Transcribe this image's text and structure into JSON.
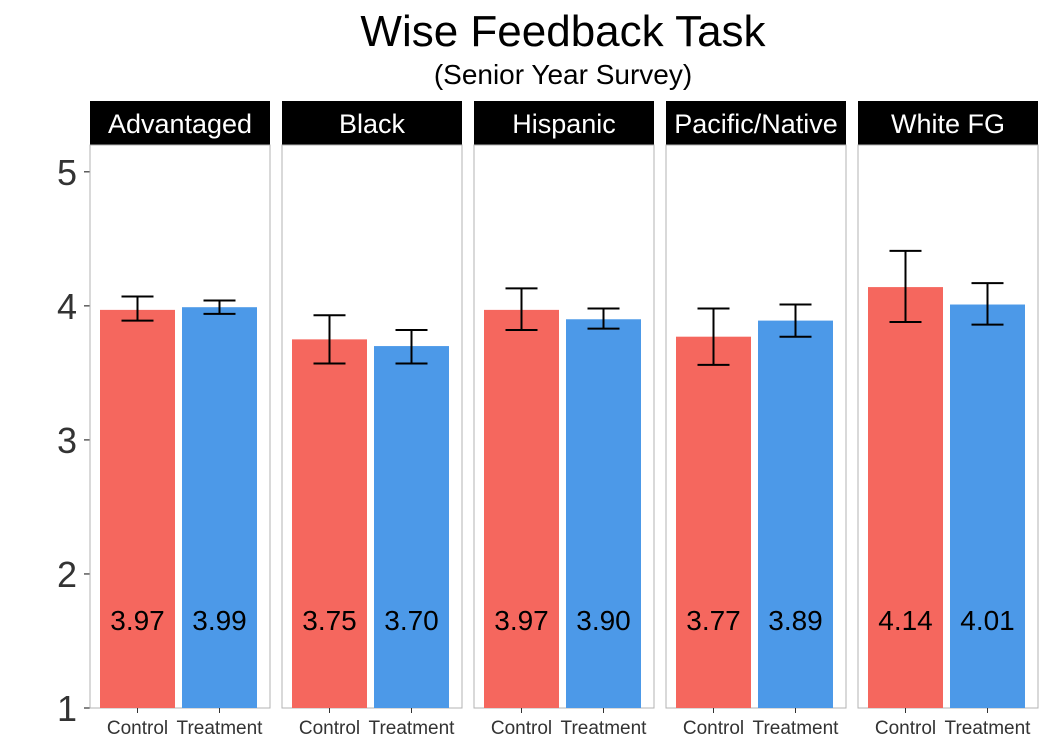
{
  "chart_data": {
    "type": "bar",
    "title": "Wise Feedback Task",
    "subtitle": "(Senior Year Survey)",
    "xlabel": "",
    "ylabel": "",
    "ylim": [
      1,
      5.2
    ],
    "yticks": [
      "1",
      "2",
      "3",
      "4",
      "5"
    ],
    "grid": false,
    "legend": "none",
    "categories": [
      "Control",
      "Treatment"
    ],
    "colors": {
      "Control": "#F5675E",
      "Treatment": "#4C99E8"
    },
    "facets": [
      {
        "label": "Advantaged",
        "bars": [
          {
            "category": "Control",
            "value": 3.97,
            "label": "3.97",
            "err_low": 3.89,
            "err_high": 4.07
          },
          {
            "category": "Treatment",
            "value": 3.99,
            "label": "3.99",
            "err_low": 3.94,
            "err_high": 4.04
          }
        ]
      },
      {
        "label": "Black",
        "bars": [
          {
            "category": "Control",
            "value": 3.75,
            "label": "3.75",
            "err_low": 3.57,
            "err_high": 3.93
          },
          {
            "category": "Treatment",
            "value": 3.7,
            "label": "3.70",
            "err_low": 3.57,
            "err_high": 3.82
          }
        ]
      },
      {
        "label": "Hispanic",
        "bars": [
          {
            "category": "Control",
            "value": 3.97,
            "label": "3.97",
            "err_low": 3.82,
            "err_high": 4.13
          },
          {
            "category": "Treatment",
            "value": 3.9,
            "label": "3.90",
            "err_low": 3.83,
            "err_high": 3.98
          }
        ]
      },
      {
        "label": "Pacific/Native",
        "bars": [
          {
            "category": "Control",
            "value": 3.77,
            "label": "3.77",
            "err_low": 3.56,
            "err_high": 3.98
          },
          {
            "category": "Treatment",
            "value": 3.89,
            "label": "3.89",
            "err_low": 3.77,
            "err_high": 4.01
          }
        ]
      },
      {
        "label": "White FG",
        "bars": [
          {
            "category": "Control",
            "value": 4.14,
            "label": "4.14",
            "err_low": 3.88,
            "err_high": 4.41
          },
          {
            "category": "Treatment",
            "value": 4.01,
            "label": "4.01",
            "err_low": 3.86,
            "err_high": 4.17
          }
        ]
      }
    ]
  }
}
